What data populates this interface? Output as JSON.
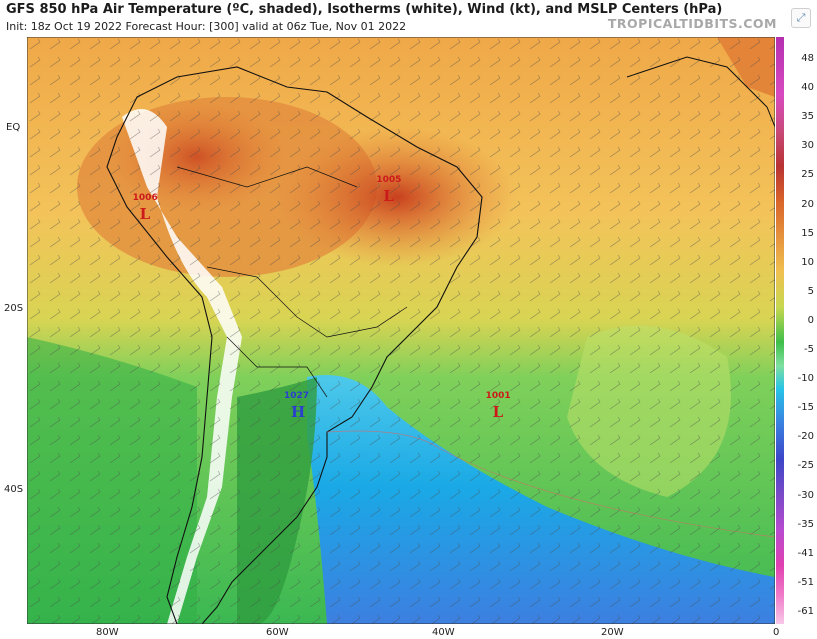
{
  "header": {
    "title": "GFS 850 hPa Air Temperature (ºC, shaded), Isotherms (white), Wind (kt), and MSLP Centers (hPa)",
    "subtitle": "Init: 18z Oct 19 2022   Forecast Hour: [300]   valid at 06z Tue, Nov 01 2022",
    "brand": "TROPICALTIDBITS.COM"
  },
  "axes": {
    "y_ticks": [
      "EQ",
      "20S",
      "40S"
    ],
    "x_ticks": [
      "80W",
      "60W",
      "40W",
      "20W",
      "0"
    ]
  },
  "colorbar": {
    "ticks": [
      "48",
      "40",
      "35",
      "30",
      "25",
      "20",
      "15",
      "10",
      "5",
      "0",
      "-5",
      "-10",
      "-15",
      "-20",
      "-25",
      "-30",
      "-35",
      "-41",
      "-51",
      "-61"
    ]
  },
  "pressure_centers": [
    {
      "value": "1006",
      "symbol": "L",
      "lon": -75,
      "lat": -8
    },
    {
      "value": "1005",
      "symbol": "L",
      "lon": -46,
      "lat": -6
    },
    {
      "value": "1027",
      "symbol": "H",
      "lon": -57,
      "lat": -30
    },
    {
      "value": "1001",
      "symbol": "L",
      "lon": -33,
      "lat": -30
    }
  ],
  "colors": {
    "low": "#cc1a1a",
    "high": "#2b3fcf",
    "warm": "#d9642a",
    "green": "#3fbf4a",
    "cyan": "#27c3e8"
  }
}
